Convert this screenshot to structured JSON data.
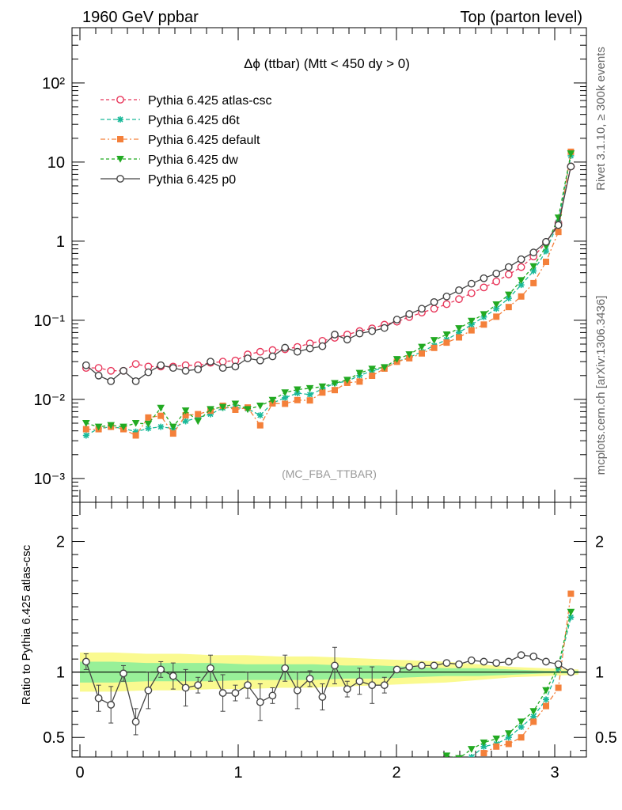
{
  "header": {
    "left": "1960 GeV ppbar",
    "right": "Top (parton level)"
  },
  "side_labels": {
    "rivet": "Rivet 3.1.10, ≥ 300k events",
    "mcplots": "mcplots.cern.ch [arXiv:1306.3436]"
  },
  "chart_data": {
    "type": "line",
    "title": "Δϕ (ttbar) (Mtt < 450 dy > 0)",
    "watermark": "(MC_FBA_TTBAR)",
    "xlim": [
      -0.05,
      3.2
    ],
    "x_ticks": [
      "0",
      "1",
      "2",
      "3"
    ],
    "main": {
      "ylog": true,
      "ylim": [
        0.0005,
        500
      ],
      "y_ticks": [
        "10⁻³",
        "10⁻²",
        "10⁻¹",
        "1",
        "10",
        "10²"
      ]
    },
    "ratio": {
      "ylabel": "Ratio to Pythia 6.425 atlas-csc",
      "ylim": [
        0.35,
        2.3
      ],
      "y_ticks": [
        "0.5",
        "1",
        "2"
      ],
      "band_outer": [
        0.15,
        0.15,
        0.14,
        0.14,
        0.13,
        0.13,
        0.12,
        0.12,
        0.11,
        0.1,
        0.09,
        0.08,
        0.06,
        0.04,
        0.03,
        0.02
      ],
      "band_inner": [
        0.08,
        0.08,
        0.07,
        0.07,
        0.07,
        0.06,
        0.06,
        0.06,
        0.05,
        0.05,
        0.04,
        0.03,
        0.03,
        0.02,
        0.01,
        0.01
      ]
    },
    "x": [
      0.039,
      0.118,
      0.196,
      0.275,
      0.353,
      0.432,
      0.511,
      0.589,
      0.668,
      0.746,
      0.825,
      0.903,
      0.982,
      1.06,
      1.139,
      1.217,
      1.296,
      1.374,
      1.453,
      1.532,
      1.61,
      1.689,
      1.767,
      1.846,
      1.924,
      2.003,
      2.081,
      2.16,
      2.238,
      2.317,
      2.395,
      2.474,
      2.552,
      2.631,
      2.709,
      2.788,
      2.866,
      2.945,
      3.023,
      3.102
    ],
    "series": [
      {
        "name": "Pythia 6.425 atlas-csc",
        "color": "#e8365a",
        "marker": "open-circle",
        "dash": "4,3",
        "values": [
          0.025,
          0.025,
          0.023,
          0.023,
          0.028,
          0.026,
          0.026,
          0.026,
          0.027,
          0.027,
          0.029,
          0.03,
          0.031,
          0.037,
          0.04,
          0.042,
          0.043,
          0.046,
          0.051,
          0.055,
          0.06,
          0.066,
          0.073,
          0.079,
          0.088,
          0.096,
          0.11,
          0.125,
          0.14,
          0.16,
          0.185,
          0.22,
          0.26,
          0.31,
          0.38,
          0.47,
          0.64,
          0.95,
          1.7,
          8.8
        ],
        "ratio": null
      },
      {
        "name": "Pythia 6.425 d6t",
        "color": "#1ab999",
        "marker": "star",
        "dash": "5,3",
        "values": [
          0.0035,
          0.0043,
          0.0045,
          0.0043,
          0.0039,
          0.0043,
          0.0045,
          0.0043,
          0.0053,
          0.0059,
          0.0065,
          0.0078,
          0.0079,
          0.0076,
          0.0063,
          0.009,
          0.0105,
          0.012,
          0.0115,
          0.0135,
          0.016,
          0.017,
          0.02,
          0.023,
          0.025,
          0.03,
          0.034,
          0.04,
          0.048,
          0.057,
          0.07,
          0.088,
          0.11,
          0.14,
          0.19,
          0.28,
          0.42,
          0.75,
          1.75,
          12.0
        ],
        "ratio": [
          null,
          null,
          null,
          null,
          null,
          null,
          null,
          null,
          null,
          null,
          null,
          null,
          null,
          null,
          null,
          null,
          null,
          null,
          null,
          null,
          null,
          null,
          null,
          null,
          null,
          null,
          null,
          null,
          null,
          null,
          null,
          0.35,
          0.43,
          0.45,
          0.5,
          0.58,
          0.66,
          0.79,
          1.03,
          1.42
        ]
      },
      {
        "name": "Pythia 6.425 default",
        "color": "#f4803a",
        "marker": "square",
        "dash": "6,3,2,3",
        "values": [
          0.0042,
          0.0042,
          0.0045,
          0.0042,
          0.0035,
          0.0059,
          0.0062,
          0.0037,
          0.0063,
          0.0065,
          0.0072,
          0.0083,
          0.0074,
          0.0079,
          0.0047,
          0.0089,
          0.0088,
          0.0098,
          0.0097,
          0.0122,
          0.0131,
          0.0162,
          0.0168,
          0.0199,
          0.0245,
          0.0299,
          0.0331,
          0.0381,
          0.0448,
          0.0522,
          0.0608,
          0.0746,
          0.0883,
          0.111,
          0.147,
          0.2,
          0.295,
          0.548,
          1.31,
          13.5
        ],
        "ratio": [
          null,
          null,
          null,
          null,
          null,
          null,
          null,
          null,
          null,
          null,
          null,
          null,
          null,
          null,
          null,
          null,
          null,
          null,
          null,
          null,
          null,
          null,
          null,
          null,
          null,
          null,
          null,
          null,
          null,
          null,
          null,
          null,
          0.38,
          0.43,
          0.45,
          0.5,
          0.62,
          0.74,
          0.88,
          1.6
        ]
      },
      {
        "name": "Pythia 6.425 dw",
        "color": "#22aa22",
        "marker": "filled-triangle-down",
        "dash": "4,3",
        "values": [
          0.005,
          0.0045,
          0.0047,
          0.0045,
          0.005,
          0.0049,
          0.0078,
          0.0045,
          0.0072,
          0.0053,
          0.0075,
          0.008,
          0.0088,
          0.0075,
          0.0083,
          0.0098,
          0.0122,
          0.0133,
          0.0138,
          0.0145,
          0.016,
          0.0176,
          0.0215,
          0.0243,
          0.0254,
          0.0322,
          0.037,
          0.046,
          0.056,
          0.066,
          0.079,
          0.098,
          0.119,
          0.158,
          0.21,
          0.32,
          0.48,
          0.86,
          1.98,
          12.8
        ],
        "ratio": [
          null,
          null,
          null,
          null,
          null,
          null,
          null,
          null,
          null,
          null,
          null,
          null,
          null,
          null,
          null,
          null,
          null,
          null,
          null,
          null,
          null,
          null,
          null,
          null,
          null,
          null,
          null,
          null,
          null,
          0.36,
          0.34,
          0.41,
          0.46,
          0.49,
          0.53,
          0.62,
          0.7,
          0.86,
          1.05,
          1.46
        ]
      },
      {
        "name": "Pythia 6.425 p0",
        "color": "#444444",
        "marker": "open-circle",
        "dash": "",
        "values": [
          0.027,
          0.02,
          0.017,
          0.023,
          0.017,
          0.022,
          0.027,
          0.025,
          0.023,
          0.024,
          0.03,
          0.025,
          0.026,
          0.033,
          0.031,
          0.035,
          0.045,
          0.04,
          0.044,
          0.047,
          0.066,
          0.057,
          0.068,
          0.073,
          0.08,
          0.102,
          0.12,
          0.14,
          0.17,
          0.2,
          0.24,
          0.29,
          0.34,
          0.39,
          0.47,
          0.59,
          0.72,
          0.98,
          1.6,
          8.8
        ],
        "ratio": [
          1.08,
          0.8,
          0.75,
          0.99,
          0.62,
          0.86,
          1.02,
          0.97,
          0.88,
          0.9,
          1.03,
          0.84,
          0.84,
          0.9,
          0.77,
          0.82,
          1.03,
          0.86,
          0.95,
          0.81,
          1.05,
          0.87,
          0.93,
          0.9,
          0.9,
          1.02,
          1.04,
          1.05,
          1.05,
          1.07,
          1.06,
          1.09,
          1.08,
          1.07,
          1.08,
          1.13,
          1.12,
          1.08,
          1.06,
          1.0
        ]
      }
    ]
  }
}
